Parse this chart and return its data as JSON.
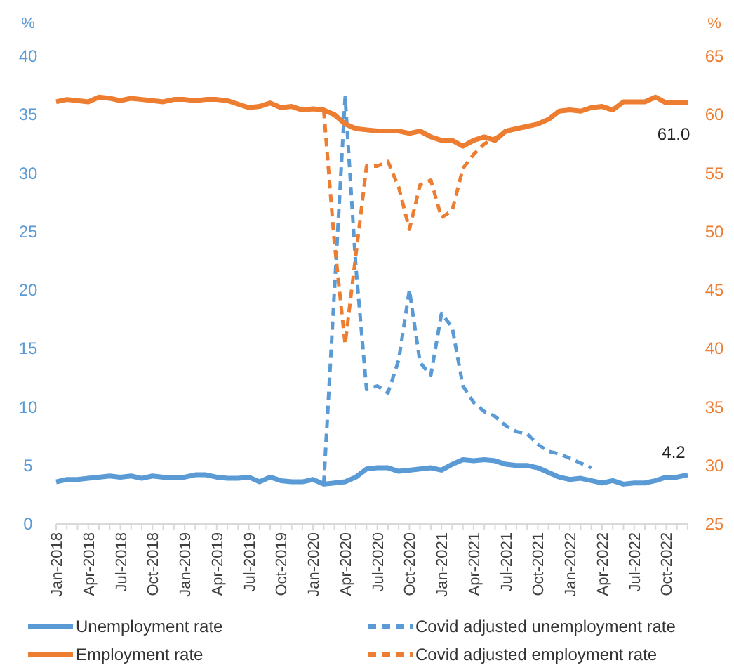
{
  "chart_data": {
    "type": "line",
    "ylabel": "%",
    "y2label": "%",
    "ylim": [
      0,
      40
    ],
    "yticks": [
      0,
      5,
      10,
      15,
      20,
      25,
      30,
      35,
      40
    ],
    "y2lim": [
      25,
      65
    ],
    "y2ticks": [
      25,
      30,
      35,
      40,
      45,
      50,
      55,
      60,
      65
    ],
    "grid": false,
    "legend": "bottom",
    "marker": "none",
    "categories": [
      "Jan-2018",
      null,
      null,
      "Apr-2018",
      null,
      null,
      "Jul-2018",
      null,
      null,
      "Oct-2018",
      null,
      null,
      "Jan-2019",
      null,
      null,
      "Apr-2019",
      null,
      null,
      "Jul-2019",
      null,
      null,
      "Oct-2019",
      null,
      null,
      "Jan-2020",
      null,
      null,
      "Apr-2020",
      null,
      null,
      "Jul-2020",
      null,
      null,
      "Oct-2020",
      null,
      null,
      "Jan-2021",
      null,
      null,
      "Apr-2021",
      null,
      null,
      "Jul-2021",
      null,
      null,
      "Oct-2021",
      null,
      null,
      "Jan-2022",
      null,
      null,
      "Apr-2022",
      null,
      null,
      "Jul-2022",
      null,
      null,
      "Oct-2022",
      null,
      null
    ],
    "series": [
      {
        "name": "Unemployment rate",
        "color": "#5b9bd5",
        "line_style": "solid",
        "values": [
          3.6,
          3.8,
          3.8,
          3.9,
          4.0,
          4.1,
          4.0,
          4.1,
          3.9,
          4.1,
          4.0,
          4.0,
          4.0,
          4.2,
          4.2,
          4.0,
          3.9,
          3.9,
          4.0,
          3.6,
          4.0,
          3.7,
          3.6,
          3.6,
          3.8,
          3.4,
          3.5,
          3.6,
          4.0,
          4.7,
          4.8,
          4.8,
          4.5,
          4.6,
          4.7,
          4.8,
          4.6,
          5.1,
          5.5,
          5.4,
          5.5,
          5.4,
          5.1,
          5.0,
          5.0,
          4.8,
          4.4,
          4.0,
          3.8,
          3.9,
          3.7,
          3.5,
          3.7,
          3.4,
          3.5,
          3.5,
          3.7,
          4.0,
          4.0,
          4.2
        ],
        "value_labels": [
          null,
          null,
          null,
          null,
          null,
          null,
          null,
          null,
          null,
          null,
          null,
          null,
          null,
          null,
          null,
          null,
          null,
          null,
          null,
          null,
          null,
          null,
          null,
          null,
          null,
          null,
          null,
          null,
          null,
          null,
          null,
          null,
          null,
          null,
          null,
          null,
          null,
          null,
          null,
          null,
          null,
          null,
          null,
          null,
          null,
          null,
          null,
          null,
          null,
          null,
          null,
          null,
          null,
          null,
          null,
          null,
          null,
          null,
          null,
          "4.2"
        ]
      },
      {
        "name": "Covid adjusted unemployment rate",
        "color": "#5b9bd5",
        "line_style": "dashed",
        "values": [
          null,
          null,
          null,
          null,
          null,
          null,
          null,
          null,
          null,
          null,
          null,
          null,
          null,
          null,
          null,
          null,
          null,
          null,
          null,
          null,
          null,
          null,
          null,
          null,
          null,
          3.4,
          20,
          36.5,
          22,
          11.5,
          11.8,
          11.2,
          14,
          20,
          13.8,
          12.7,
          18,
          16.8,
          11.8,
          10.4,
          9.6,
          9.2,
          8.4,
          7.9,
          7.7,
          6.8,
          6.2,
          6.0,
          5.6,
          5.2,
          4.8,
          null,
          null,
          null,
          null,
          null,
          null,
          null,
          null,
          null
        ]
      },
      {
        "name": "Employment rate",
        "color": "#ed7d31",
        "line_style": "solid",
        "axis": "y2",
        "values": [
          61.1,
          61.3,
          61.2,
          61.1,
          61.5,
          61.4,
          61.2,
          61.4,
          61.3,
          61.2,
          61.1,
          61.3,
          61.3,
          61.2,
          61.3,
          61.3,
          61.2,
          60.9,
          60.6,
          60.7,
          61.0,
          60.6,
          60.7,
          60.4,
          60.5,
          60.4,
          60.0,
          59.2,
          58.8,
          58.7,
          58.6,
          58.6,
          58.6,
          58.4,
          58.6,
          58.1,
          57.8,
          57.8,
          57.3,
          57.8,
          58.1,
          57.8,
          58.6,
          58.8,
          59.0,
          59.2,
          59.6,
          60.3,
          60.4,
          60.3,
          60.6,
          60.7,
          60.4,
          61.1,
          61.1,
          61.1,
          61.5,
          61.0,
          61.0,
          61.0
        ],
        "value_labels": [
          null,
          null,
          null,
          null,
          null,
          null,
          null,
          null,
          null,
          null,
          null,
          null,
          null,
          null,
          null,
          null,
          null,
          null,
          null,
          null,
          null,
          null,
          null,
          null,
          null,
          null,
          null,
          null,
          null,
          null,
          null,
          null,
          null,
          null,
          null,
          null,
          null,
          null,
          null,
          null,
          null,
          null,
          null,
          null,
          null,
          null,
          null,
          null,
          null,
          null,
          null,
          null,
          null,
          null,
          null,
          null,
          null,
          null,
          null,
          "61.0"
        ]
      },
      {
        "name": "Covid adjusted employment rate",
        "color": "#ed7d31",
        "line_style": "dashed",
        "axis": "y2",
        "values": [
          null,
          null,
          null,
          null,
          null,
          null,
          null,
          null,
          null,
          null,
          null,
          null,
          null,
          null,
          null,
          null,
          null,
          null,
          null,
          null,
          null,
          null,
          null,
          null,
          null,
          60.4,
          49,
          40.4,
          48,
          55.6,
          55.6,
          56,
          53.8,
          50.2,
          54,
          54.4,
          51.2,
          51.8,
          55.4,
          56.6,
          57.5,
          58,
          58.5,
          58.8,
          58.9,
          59.2,
          59.6,
          60.3,
          null,
          null,
          null,
          null,
          null,
          null,
          null,
          null,
          null,
          null,
          null,
          null
        ]
      }
    ]
  }
}
